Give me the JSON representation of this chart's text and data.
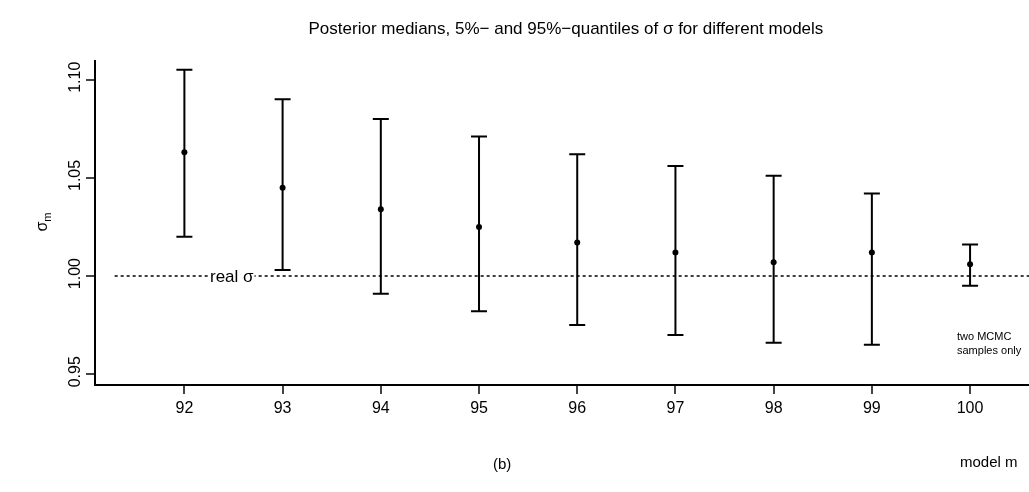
{
  "chart_data": {
    "type": "scatter",
    "title": "Posterior medians, 5%− and 95%−quantiles of σ for different models",
    "xlabel": "model m",
    "ylabel": "σ$_{m}$",
    "x": [
      92,
      93,
      94,
      95,
      96,
      97,
      98,
      99,
      100
    ],
    "values": [
      1.063,
      1.045,
      1.034,
      1.025,
      1.017,
      1.012,
      1.007,
      1.012,
      1.006
    ],
    "errors": [
      [
        1.02,
        1.105
      ],
      [
        1.003,
        1.09
      ],
      [
        0.991,
        1.08
      ],
      [
        0.982,
        1.071
      ],
      [
        0.975,
        1.062
      ],
      [
        0.97,
        1.056
      ],
      [
        0.966,
        1.051
      ],
      [
        0.965,
        1.042
      ],
      [
        0.995,
        1.016
      ]
    ],
    "color": "#000000",
    "marker": "circle",
    "xlim": [
      91.1,
      100.6
    ],
    "xticks": [
      92,
      93,
      94,
      95,
      96,
      97,
      98,
      99,
      100
    ],
    "ylim": [
      0.945,
      1.11
    ],
    "yticks": [
      {
        "value": 0.95,
        "label": "0.95"
      },
      {
        "value": 1,
        "label": "1.00"
      },
      {
        "value": 1.05,
        "label": "1.05"
      },
      {
        "value": 1.1,
        "label": "1.10"
      }
    ],
    "ref_lines": [
      {
        "axis": "y",
        "value": 1,
        "label": "real σ",
        "color": "#000000",
        "line_style": "dotted"
      }
    ],
    "annotations": [
      "two MCMC\nsamples only",
      "(b)"
    ],
    "grid": false
  }
}
